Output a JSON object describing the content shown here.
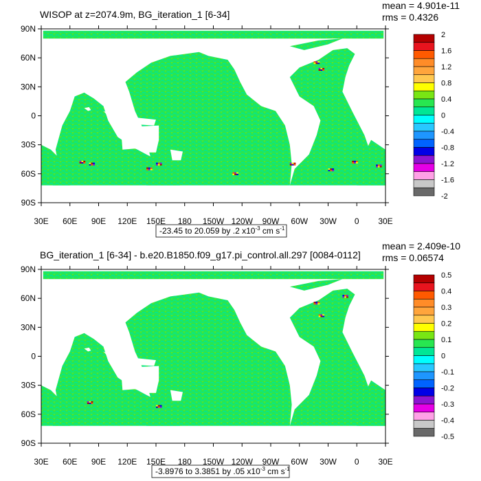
{
  "chart_data": [
    {
      "type": "heatmap",
      "title": "WISOP at z=2074.9m, BG_iteration_1 [6-34]",
      "stats": [
        "mean = 4.901e-11",
        "rms = 0.4326"
      ],
      "lat_ticks": [
        "90N",
        "60N",
        "30N",
        "0",
        "30S",
        "60S",
        "90S"
      ],
      "lon_ticks": [
        "30E",
        "60E",
        "90E",
        "120E",
        "150E",
        "180",
        "150W",
        "120W",
        "90W",
        "60W",
        "30W",
        "0",
        "30E"
      ],
      "lat_range": [
        -90,
        90
      ],
      "lon_range": [
        30,
        390
      ],
      "colorbar_labels": [
        "2",
        "1.6",
        "1.2",
        "0.8",
        "0.4",
        "0",
        "-0.4",
        "-0.8",
        "-1.2",
        "-1.6",
        "-2"
      ],
      "colorbar_colors": [
        "#b40000",
        "#e8141e",
        "#ff5a00",
        "#ff8c28",
        "#ffa53c",
        "#ffc850",
        "#ffff00",
        "#78e614",
        "#28e650",
        "#00e696",
        "#00ffff",
        "#28c8ff",
        "#1e96ff",
        "#0064ff",
        "#0000e6",
        "#8c14d2",
        "#e600e6",
        "#ffa0e6",
        "#c8c8c8",
        "#696969"
      ],
      "range_box": "-23.45 to 20.059 by .2 x10",
      "units_exp": "-3",
      "units_rest": " cm s",
      "units_exp2": "-1"
    },
    {
      "type": "heatmap",
      "title": "BG_iteration_1 [6-34] - b.e20.B1850.f09_g17.pi_control.all.297 [0084-0112]",
      "stats": [
        "mean = 2.409e-10",
        "rms = 0.06574"
      ],
      "lat_ticks": [
        "90N",
        "60N",
        "30N",
        "0",
        "30S",
        "60S",
        "90S"
      ],
      "lon_ticks": [
        "30E",
        "60E",
        "90E",
        "120E",
        "150E",
        "180",
        "150W",
        "120W",
        "90W",
        "60W",
        "30W",
        "0",
        "30E"
      ],
      "lat_range": [
        -90,
        90
      ],
      "lon_range": [
        30,
        390
      ],
      "colorbar_labels": [
        "0.5",
        "0.4",
        "0.3",
        "0.2",
        "0.1",
        "0",
        "-0.1",
        "-0.2",
        "-0.3",
        "-0.4",
        "-0.5"
      ],
      "colorbar_colors": [
        "#b40000",
        "#e8141e",
        "#ff5a00",
        "#ff8c28",
        "#ffa53c",
        "#ffc850",
        "#ffff00",
        "#78e614",
        "#28e650",
        "#00e696",
        "#00ffff",
        "#28c8ff",
        "#1e96ff",
        "#0064ff",
        "#0000e6",
        "#8c14d2",
        "#e600e6",
        "#ffa0e6",
        "#c8c8c8",
        "#696969"
      ],
      "range_box": "-3.8976 to 3.3851 by .05 x10",
      "units_exp": "-3",
      "units_rest": " cm s",
      "units_exp2": "-1"
    }
  ]
}
